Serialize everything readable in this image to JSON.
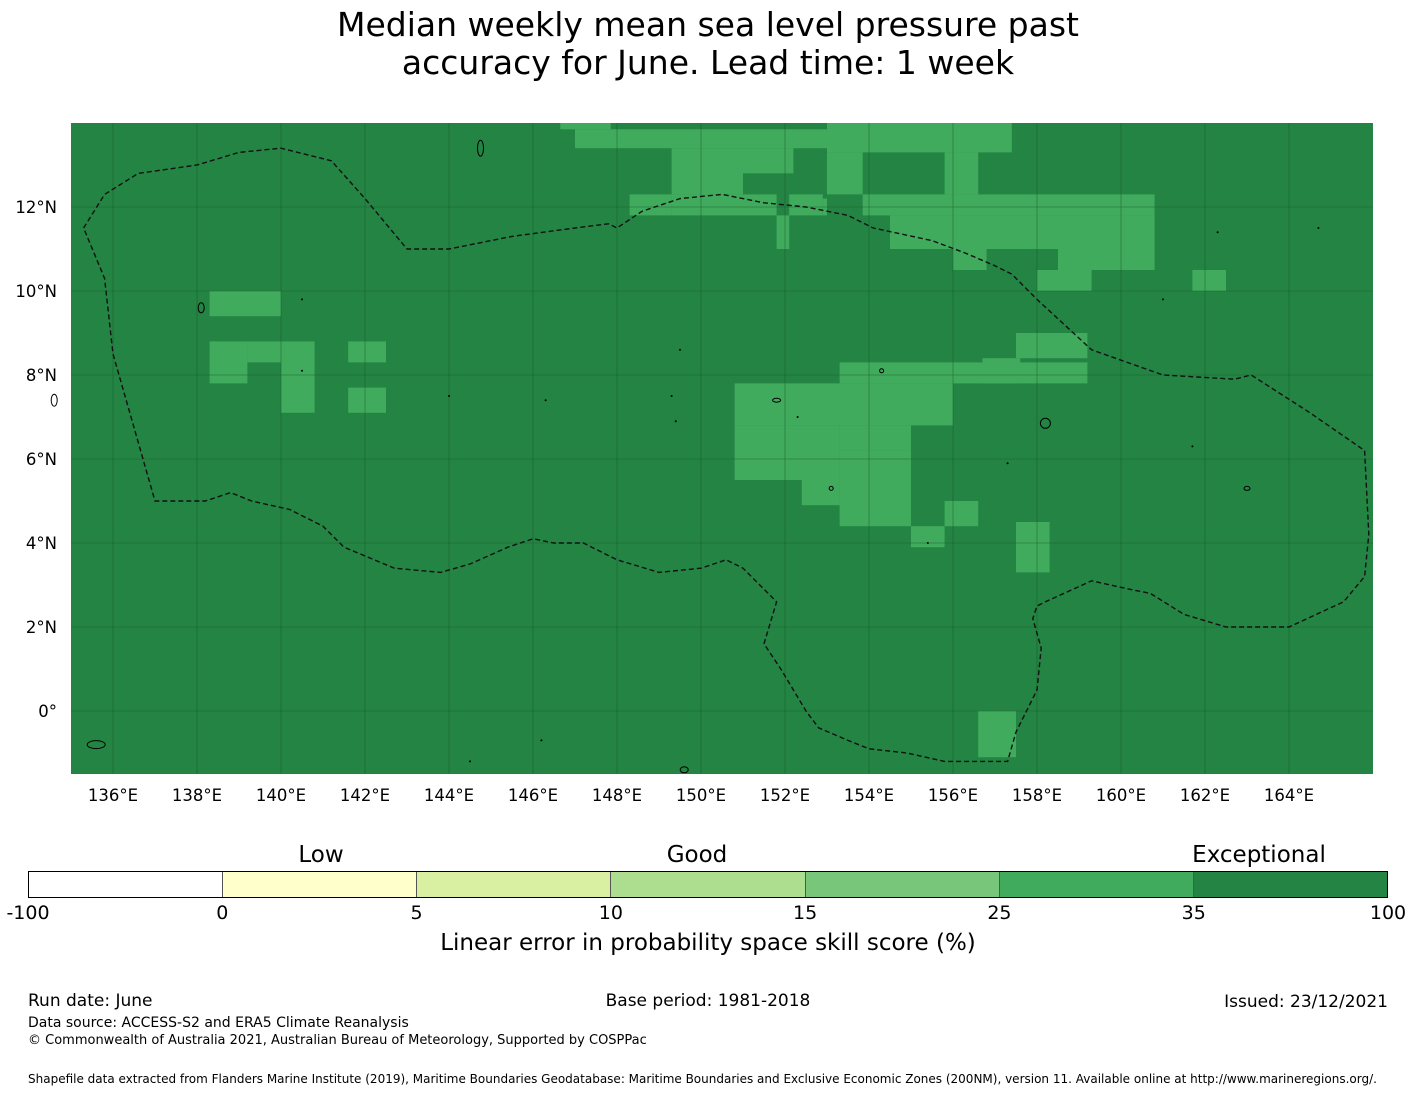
{
  "title": {
    "line1": "Median weekly mean sea level pressure past",
    "line2": "accuracy for June. Lead time: 1 week"
  },
  "map": {
    "lon_range": [
      135,
      166
    ],
    "lat_range": [
      -1.5,
      14
    ],
    "lon_ticks": [
      "136°E",
      "138°E",
      "140°E",
      "142°E",
      "144°E",
      "146°E",
      "148°E",
      "150°E",
      "152°E",
      "154°E",
      "156°E",
      "158°E",
      "160°E",
      "162°E",
      "164°E"
    ],
    "lat_ticks": [
      "12°N",
      "10°N",
      "8°N",
      "6°N",
      "4°N",
      "2°N",
      "0°"
    ],
    "background_color": "#238443",
    "highlight_color": "#41ab5d",
    "grid_color": "#1a5e30",
    "highlight_cells": [
      [
        146.65,
        147.85,
        13.85,
        14.0
      ],
      [
        147.0,
        153.0,
        13.4,
        13.85
      ],
      [
        153.0,
        157.4,
        13.3,
        14.0
      ],
      [
        149.3,
        151.0,
        12.3,
        13.4
      ],
      [
        151.0,
        152.2,
        12.8,
        13.4
      ],
      [
        153.0,
        153.85,
        12.3,
        13.3
      ],
      [
        155.8,
        156.6,
        12.3,
        13.3
      ],
      [
        148.3,
        149.3,
        11.8,
        12.3
      ],
      [
        149.3,
        151.8,
        11.8,
        12.3
      ],
      [
        152.1,
        152.9,
        11.8,
        12.3
      ],
      [
        153.85,
        160.8,
        11.8,
        12.3
      ],
      [
        151.8,
        152.1,
        11.0,
        11.8
      ],
      [
        152.9,
        153.0,
        11.8,
        12.2
      ],
      [
        154.5,
        156.0,
        11.0,
        11.8
      ],
      [
        156.0,
        158.5,
        11.0,
        11.8
      ],
      [
        158.5,
        160.8,
        10.5,
        11.8
      ],
      [
        156.0,
        156.8,
        10.5,
        11.0
      ],
      [
        158.0,
        159.3,
        10.0,
        10.5
      ],
      [
        161.7,
        162.5,
        10.0,
        10.5
      ],
      [
        138.3,
        140.0,
        9.4,
        10.0
      ],
      [
        157.5,
        159.2,
        8.4,
        9.0
      ],
      [
        138.3,
        139.2,
        7.8,
        8.8
      ],
      [
        139.2,
        140.0,
        8.3,
        8.8
      ],
      [
        140.0,
        140.8,
        7.1,
        8.8
      ],
      [
        141.6,
        142.5,
        8.3,
        8.8
      ],
      [
        141.6,
        142.5,
        7.1,
        7.7
      ],
      [
        156.7,
        157.6,
        7.8,
        8.4
      ],
      [
        153.3,
        159.2,
        7.8,
        8.3
      ],
      [
        150.8,
        156.0,
        6.8,
        7.8
      ],
      [
        150.8,
        153.3,
        5.5,
        6.8
      ],
      [
        153.3,
        155.0,
        6.2,
        6.8
      ],
      [
        152.4,
        153.3,
        4.9,
        5.5
      ],
      [
        153.3,
        155.0,
        4.4,
        6.2
      ],
      [
        155.0,
        155.8,
        3.9,
        4.4
      ],
      [
        155.8,
        156.6,
        4.4,
        5.0
      ],
      [
        157.5,
        158.3,
        3.3,
        4.5
      ],
      [
        156.6,
        157.5,
        -1.1,
        0.0
      ]
    ]
  },
  "colorbar": {
    "category_labels": [
      "Low",
      "Good",
      "Exceptional"
    ],
    "boundaries": [
      "-100",
      "0",
      "5",
      "10",
      "15",
      "25",
      "35",
      "100"
    ],
    "colors": [
      "#ffffff",
      "#ffffcc",
      "#d9f0a3",
      "#addd8e",
      "#78c679",
      "#41ab5d",
      "#238443"
    ],
    "caption": "Linear error in probability space skill score (%)"
  },
  "footer": {
    "run_date": "Run date: June",
    "base_period": "Base period: 1981-2018",
    "issued": "Issued: 23/12/2021",
    "data_source": "Data source: ACCESS-S2 and ERA5 Climate Reanalysis",
    "copyright": "© Commonwealth of Australia 2021, Australian Bureau of Meteorology, Supported by COSPPac",
    "shapefile": "Shapefile data extracted from Flanders Marine Institute (2019), Maritime Boundaries Geodatabase: Maritime Boundaries and Exclusive Economic Zones (200NM), version 11. Available online at http://www.marineregions.org/."
  }
}
